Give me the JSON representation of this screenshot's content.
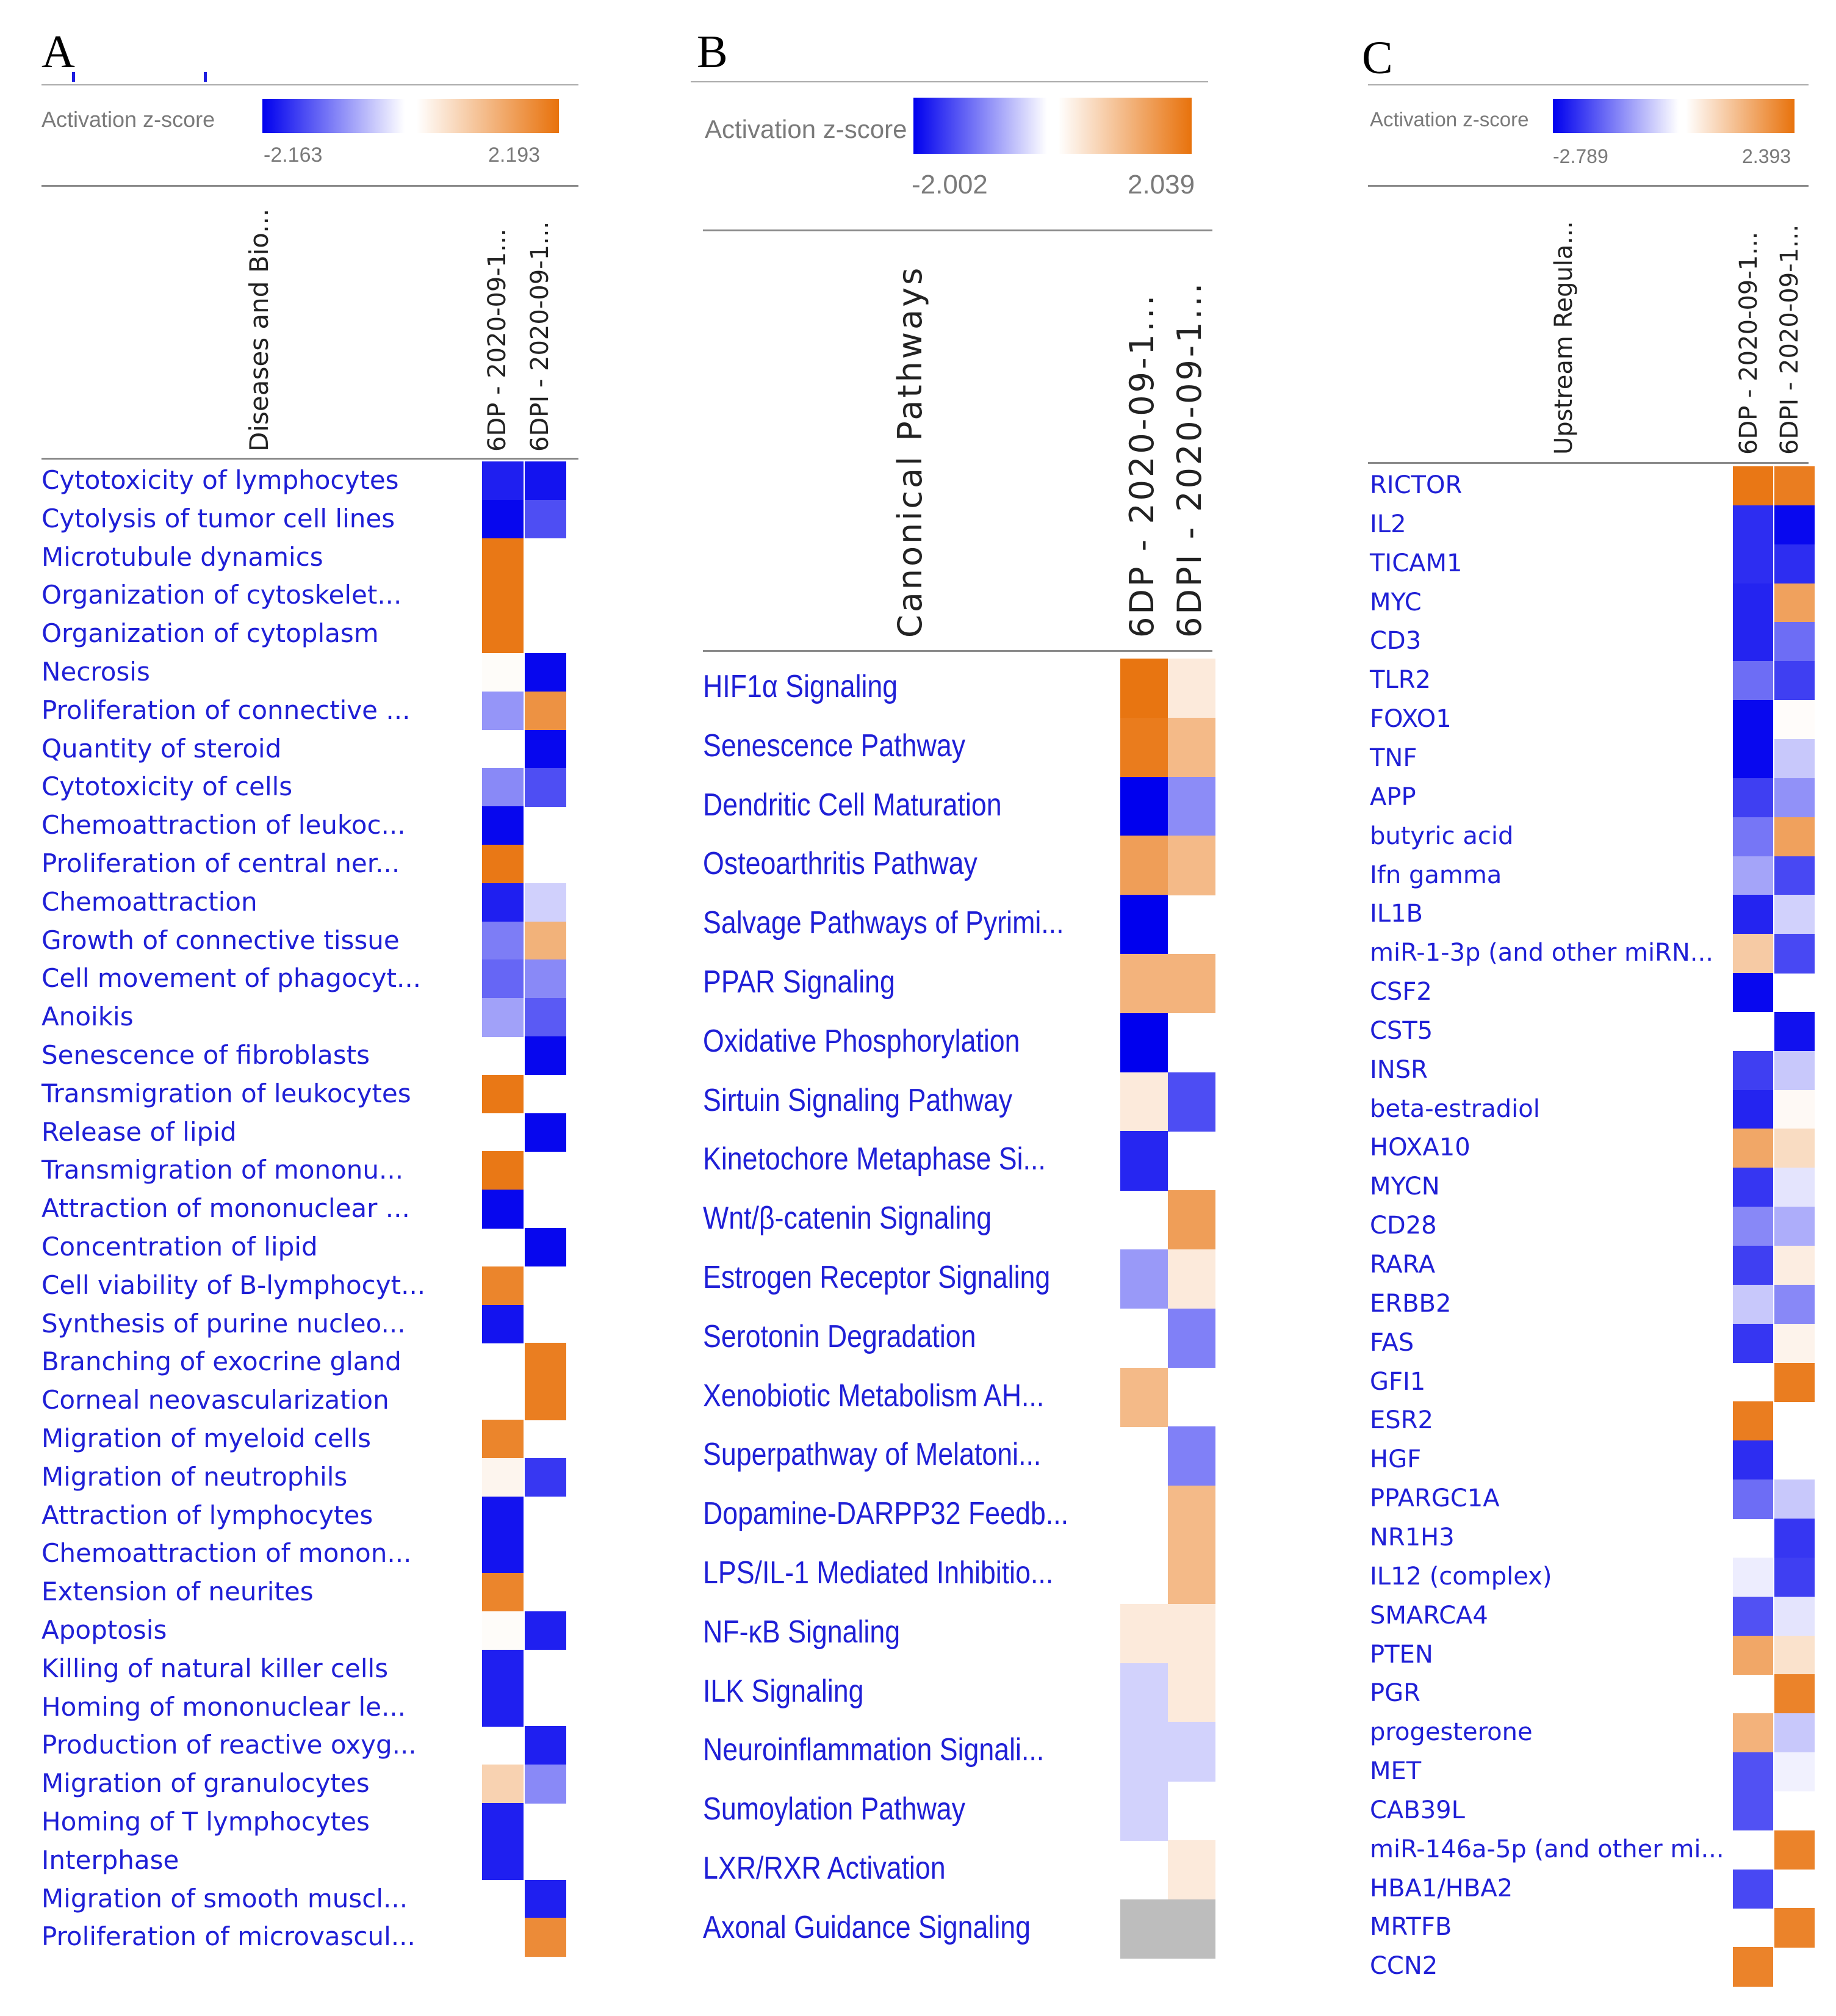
{
  "colors": {
    "blue": "#0000ee",
    "white": "#ffffff",
    "orange": "#e8720c",
    "na": "#bdbdbd",
    "label": "#1f1fd6"
  },
  "chart_data": [
    {
      "panel": "A",
      "type": "heatmap",
      "legend_title": "Activation z-score",
      "zmin": -2.163,
      "zmax": 2.193,
      "zmin_label": "-2.163",
      "zmax_label": "2.193",
      "row_header": "Diseases and Bio...",
      "columns": [
        "6DP - 2020-09-1...",
        "6DPI - 2020-09-1..."
      ],
      "rows": [
        {
          "label": "Cytotoxicity of lymphocytes",
          "values": [
            -1.9,
            -2.0
          ]
        },
        {
          "label": "Cytolysis of tumor cell lines",
          "values": [
            -2.1,
            -1.5
          ]
        },
        {
          "label": "Microtubule dynamics",
          "values": [
            2.1,
            null
          ]
        },
        {
          "label": "Organization of cytoskelet...",
          "values": [
            2.1,
            null
          ]
        },
        {
          "label": "Organization of cytoplasm",
          "values": [
            2.1,
            null
          ]
        },
        {
          "label": "Necrosis",
          "values": [
            0.05,
            -2.1
          ]
        },
        {
          "label": "Proliferation of connective ...",
          "values": [
            -0.9,
            1.7
          ]
        },
        {
          "label": "Quantity of steroid",
          "values": [
            null,
            -2.1
          ]
        },
        {
          "label": "Cytotoxicity of cells",
          "values": [
            -1.0,
            -1.5
          ]
        },
        {
          "label": "Chemoattraction of leukoc...",
          "values": [
            -2.1,
            null
          ]
        },
        {
          "label": "Proliferation of central ner...",
          "values": [
            2.1,
            null
          ]
        },
        {
          "label": "Chemoattraction",
          "values": [
            -1.9,
            -0.4
          ]
        },
        {
          "label": "Growth of connective tissue",
          "values": [
            -1.1,
            1.2
          ]
        },
        {
          "label": "Cell movement of phagocyt...",
          "values": [
            -1.3,
            -1.0
          ]
        },
        {
          "label": "Anoikis",
          "values": [
            -0.8,
            -1.4
          ]
        },
        {
          "label": "Senescence of fibroblasts",
          "values": [
            null,
            -2.1
          ]
        },
        {
          "label": "Transmigration of leukocytes",
          "values": [
            2.1,
            null
          ]
        },
        {
          "label": "Release of lipid",
          "values": [
            null,
            -2.1
          ]
        },
        {
          "label": "Transmigration of mononu...",
          "values": [
            2.1,
            null
          ]
        },
        {
          "label": "Attraction of mononuclear ...",
          "values": [
            -2.1,
            null
          ]
        },
        {
          "label": "Concentration of lipid",
          "values": [
            null,
            -2.1
          ]
        },
        {
          "label": "Cell viability of B-lymphocyt...",
          "values": [
            1.9,
            null
          ]
        },
        {
          "label": "Synthesis of purine nucleo...",
          "values": [
            -2.0,
            null
          ]
        },
        {
          "label": "Branching of exocrine gland",
          "values": [
            null,
            2.0
          ]
        },
        {
          "label": "Corneal neovascularization",
          "values": [
            null,
            2.0
          ]
        },
        {
          "label": "Migration of myeloid cells",
          "values": [
            1.9,
            null
          ]
        },
        {
          "label": "Migration of neutrophils",
          "values": [
            0.15,
            -1.7
          ]
        },
        {
          "label": "Attraction of lymphocytes",
          "values": [
            -2.0,
            null
          ]
        },
        {
          "label": "Chemoattraction of monon...",
          "values": [
            -2.0,
            null
          ]
        },
        {
          "label": "Extension of neurites",
          "values": [
            1.9,
            null
          ]
        },
        {
          "label": "Apoptosis",
          "values": [
            0.05,
            -1.9
          ]
        },
        {
          "label": "Killing of natural killer cells",
          "values": [
            -1.9,
            null
          ]
        },
        {
          "label": "Homing of mononuclear le...",
          "values": [
            -1.9,
            null
          ]
        },
        {
          "label": "Production of reactive oxyg...",
          "values": [
            null,
            -1.9
          ]
        },
        {
          "label": "Migration of granulocytes",
          "values": [
            0.7,
            -1.0
          ]
        },
        {
          "label": "Homing of T lymphocytes",
          "values": [
            -1.9,
            null
          ]
        },
        {
          "label": "Interphase",
          "values": [
            -1.9,
            null
          ]
        },
        {
          "label": "Migration of smooth muscl...",
          "values": [
            null,
            -1.9
          ]
        },
        {
          "label": "Proliferation of microvascul...",
          "values": [
            null,
            1.8
          ]
        }
      ]
    },
    {
      "panel": "B",
      "type": "heatmap",
      "legend_title": "Activation z-score",
      "zmin": -2.002,
      "zmax": 2.039,
      "zmin_label": "-2.002",
      "zmax_label": "2.039",
      "row_header": "Canonical Pathways",
      "columns": [
        "6DP - 2020-09-1...",
        "6DPI - 2020-09-1..."
      ],
      "rows": [
        {
          "label": "HIF1α Signaling",
          "values": [
            2.0,
            0.3
          ]
        },
        {
          "label": "Senescence Pathway",
          "values": [
            1.9,
            1.0
          ]
        },
        {
          "label": "Dendritic Cell Maturation",
          "values": [
            -2.0,
            -0.9
          ]
        },
        {
          "label": "Osteoarthritis Pathway",
          "values": [
            1.4,
            1.0
          ]
        },
        {
          "label": "Salvage Pathways of Pyrimi...",
          "values": [
            -2.0,
            null
          ]
        },
        {
          "label": "PPAR Signaling",
          "values": [
            1.1,
            1.1
          ]
        },
        {
          "label": "Oxidative Phosphorylation",
          "values": [
            -2.0,
            null
          ]
        },
        {
          "label": "Sirtuin Signaling Pathway",
          "values": [
            0.3,
            -1.4
          ]
        },
        {
          "label": "Kinetochore Metaphase Si...",
          "values": [
            -1.7,
            null
          ]
        },
        {
          "label": "Wnt/β-catenin Signaling",
          "values": [
            null,
            1.4
          ]
        },
        {
          "label": "Estrogen Receptor Signaling",
          "values": [
            -0.8,
            0.3
          ]
        },
        {
          "label": "Serotonin Degradation",
          "values": [
            null,
            -1.0
          ]
        },
        {
          "label": "Xenobiotic Metabolism AH...",
          "values": [
            1.0,
            null
          ]
        },
        {
          "label": "Superpathway of Melatoni...",
          "values": [
            null,
            -1.0
          ]
        },
        {
          "label": "Dopamine-DARPP32 Feedb...",
          "values": [
            null,
            1.0
          ]
        },
        {
          "label": "LPS/IL-1 Mediated Inhibitio...",
          "values": [
            null,
            1.0
          ]
        },
        {
          "label": "NF-κB Signaling",
          "values": [
            0.3,
            0.3
          ]
        },
        {
          "label": "ILK Signaling",
          "values": [
            -0.35,
            0.3
          ]
        },
        {
          "label": "Neuroinflammation Signali...",
          "values": [
            -0.35,
            -0.35
          ]
        },
        {
          "label": "Sumoylation Pathway",
          "values": [
            -0.35,
            null
          ]
        },
        {
          "label": "LXR/RXR Activation",
          "values": [
            null,
            0.3
          ]
        },
        {
          "label": "Axonal Guidance Signaling",
          "values": [
            "na",
            "na"
          ]
        }
      ]
    },
    {
      "panel": "C",
      "type": "heatmap",
      "legend_title": "Activation z-score",
      "zmin": -2.789,
      "zmax": 2.393,
      "zmin_label": "-2.789",
      "zmax_label": "2.393",
      "row_header": "Upstream Regula...",
      "columns": [
        "6DP - 2020-09-1...",
        "6DPI - 2020-09-1..."
      ],
      "rows": [
        {
          "label": "RICTOR",
          "values": [
            2.3,
            2.2
          ]
        },
        {
          "label": "IL2",
          "values": [
            -2.3,
            -2.7
          ]
        },
        {
          "label": "TICAM1",
          "values": [
            -2.3,
            -2.3
          ]
        },
        {
          "label": "MYC",
          "values": [
            -2.4,
            1.6
          ]
        },
        {
          "label": "CD3",
          "values": [
            -2.4,
            -1.6
          ]
        },
        {
          "label": "TLR2",
          "values": [
            -1.6,
            -2.1
          ]
        },
        {
          "label": "FOXO1",
          "values": [
            -2.7,
            0.05
          ]
        },
        {
          "label": "TNF",
          "values": [
            -2.7,
            -0.6
          ]
        },
        {
          "label": "APP",
          "values": [
            -2.1,
            -1.2
          ]
        },
        {
          "label": "butyric acid",
          "values": [
            -1.5,
            1.6
          ]
        },
        {
          "label": "Ifn gamma",
          "values": [
            -1.0,
            -2.0
          ]
        },
        {
          "label": "IL1B",
          "values": [
            -2.4,
            -0.5
          ]
        },
        {
          "label": "miR-1-3p (and other miRN...",
          "values": [
            0.9,
            -2.0
          ]
        },
        {
          "label": "CSF2",
          "values": [
            -2.7,
            null
          ]
        },
        {
          "label": "CST5",
          "values": [
            null,
            -2.6
          ]
        },
        {
          "label": "INSR",
          "values": [
            -2.1,
            -0.6
          ]
        },
        {
          "label": "beta-estradiol",
          "values": [
            -2.4,
            0.1
          ]
        },
        {
          "label": "HOXA10",
          "values": [
            1.5,
            0.6
          ]
        },
        {
          "label": "MYCN",
          "values": [
            -2.2,
            -0.3
          ]
        },
        {
          "label": "CD28",
          "values": [
            -1.3,
            -0.9
          ]
        },
        {
          "label": "RARA",
          "values": [
            -2.1,
            0.3
          ]
        },
        {
          "label": "ERBB2",
          "values": [
            -0.6,
            -1.3
          ]
        },
        {
          "label": "FAS",
          "values": [
            -2.2,
            0.2
          ]
        },
        {
          "label": "GFI1",
          "values": [
            null,
            2.2
          ]
        },
        {
          "label": "ESR2",
          "values": [
            2.2,
            null
          ]
        },
        {
          "label": "HGF",
          "values": [
            -2.3,
            null
          ]
        },
        {
          "label": "PPARGC1A",
          "values": [
            -1.6,
            -0.6
          ]
        },
        {
          "label": "NR1H3",
          "values": [
            null,
            -2.2
          ]
        },
        {
          "label": "IL12 (complex)",
          "values": [
            -0.2,
            -2.1
          ]
        },
        {
          "label": "SMARCA4",
          "values": [
            -1.9,
            -0.3
          ]
        },
        {
          "label": "PTEN",
          "values": [
            1.5,
            0.5
          ]
        },
        {
          "label": "PGR",
          "values": [
            null,
            2.1
          ]
        },
        {
          "label": "progesterone",
          "values": [
            1.3,
            -0.6
          ]
        },
        {
          "label": "MET",
          "values": [
            -1.9,
            -0.15
          ]
        },
        {
          "label": "CAB39L",
          "values": [
            -1.9,
            null
          ]
        },
        {
          "label": "miR-146a-5p (and other mi...",
          "values": [
            null,
            2.1
          ]
        },
        {
          "label": "HBA1/HBA2",
          "values": [
            -2.0,
            null
          ]
        },
        {
          "label": "MRTFB",
          "values": [
            null,
            2.1
          ]
        },
        {
          "label": "CCN2",
          "values": [
            2.1,
            null
          ]
        }
      ]
    }
  ]
}
